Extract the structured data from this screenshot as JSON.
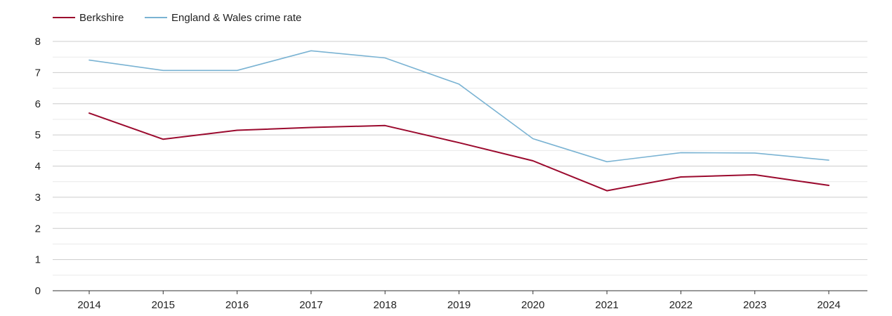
{
  "chart_data": {
    "type": "line",
    "title": "",
    "xlabel": "",
    "ylabel": "",
    "categories": [
      "2014",
      "2015",
      "2016",
      "2017",
      "2018",
      "2019",
      "2020",
      "2021",
      "2022",
      "2023",
      "2024"
    ],
    "ylim": [
      0,
      8
    ],
    "yticks": [
      0,
      1,
      2,
      3,
      4,
      5,
      6,
      7,
      8
    ],
    "grid": true,
    "legend_position": "top-left",
    "series": [
      {
        "name": "Berkshire",
        "color": "#9b0a2e",
        "values": [
          5.7,
          4.86,
          5.15,
          5.24,
          5.3,
          4.75,
          4.17,
          3.21,
          3.65,
          3.72,
          3.38
        ]
      },
      {
        "name": "England & Wales crime rate",
        "color": "#7ab3d3",
        "values": [
          7.4,
          7.07,
          7.07,
          7.7,
          7.47,
          6.63,
          4.88,
          4.14,
          4.43,
          4.42,
          4.19
        ]
      }
    ]
  }
}
